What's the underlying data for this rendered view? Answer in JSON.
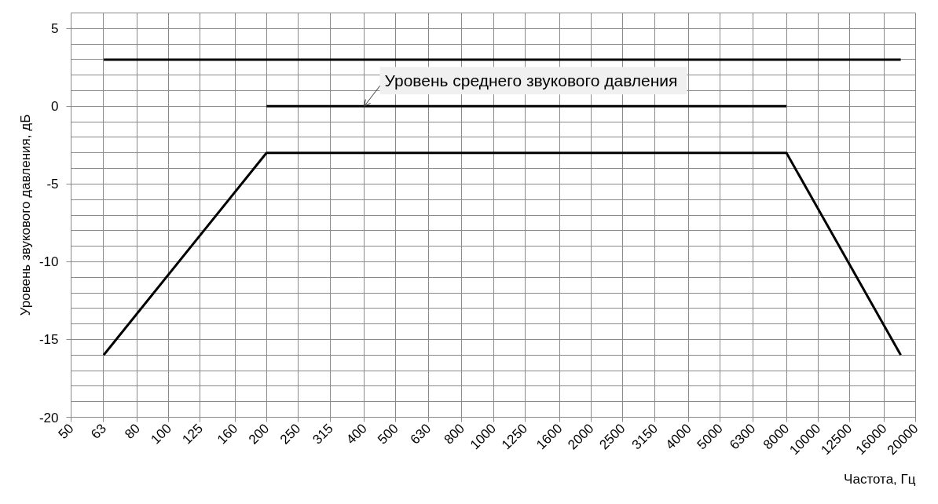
{
  "chart_data": {
    "type": "line",
    "xlabel": "Частота, Гц",
    "ylabel": "Уровень звукового давления, дБ",
    "annotations": [
      {
        "text": "Уровень среднего  звукового давления",
        "x": 400,
        "y": 0
      }
    ],
    "log": "x",
    "xlim": [
      50,
      20000
    ],
    "xticks": [
      50,
      63,
      80,
      100,
      125,
      160,
      200,
      250,
      315,
      400,
      500,
      630,
      800,
      1000,
      1250,
      1600,
      2000,
      2500,
      3150,
      4000,
      5000,
      6300,
      8000,
      10000,
      12500,
      16000,
      20000
    ],
    "ylim": [
      -20,
      6
    ],
    "yticks": [
      -20,
      {
        "value": -19,
        "label": null
      },
      {
        "value": -18,
        "label": null
      },
      {
        "value": -17,
        "label": null
      },
      {
        "value": -16,
        "label": null
      },
      -15,
      {
        "value": -14,
        "label": null
      },
      {
        "value": -13,
        "label": null
      },
      {
        "value": -12,
        "label": null
      },
      {
        "value": -11,
        "label": null
      },
      -10,
      {
        "value": -9,
        "label": null
      },
      {
        "value": -8,
        "label": null
      },
      {
        "value": -7,
        "label": null
      },
      {
        "value": -6,
        "label": null
      },
      -5,
      {
        "value": -4,
        "label": null
      },
      {
        "value": -3,
        "label": null
      },
      {
        "value": -2,
        "label": null
      },
      {
        "value": -1,
        "label": null
      },
      0,
      {
        "value": 1,
        "label": null
      },
      {
        "value": 2,
        "label": null
      },
      {
        "value": 3,
        "label": null
      },
      {
        "value": 4,
        "label": null
      },
      5,
      {
        "value": 6,
        "label": null
      }
    ],
    "grid": true,
    "line_style": "solid",
    "series": [
      {
        "color": "#000000",
        "x": [
          63,
          18000
        ],
        "values": [
          3,
          3
        ]
      },
      {
        "color": "#000000",
        "x": [
          200,
          8000
        ],
        "values": [
          0,
          0
        ]
      },
      {
        "color": "#000000",
        "x": [
          63,
          200,
          8000,
          18000
        ],
        "values": [
          -16,
          -3,
          -3,
          -16
        ]
      }
    ]
  }
}
